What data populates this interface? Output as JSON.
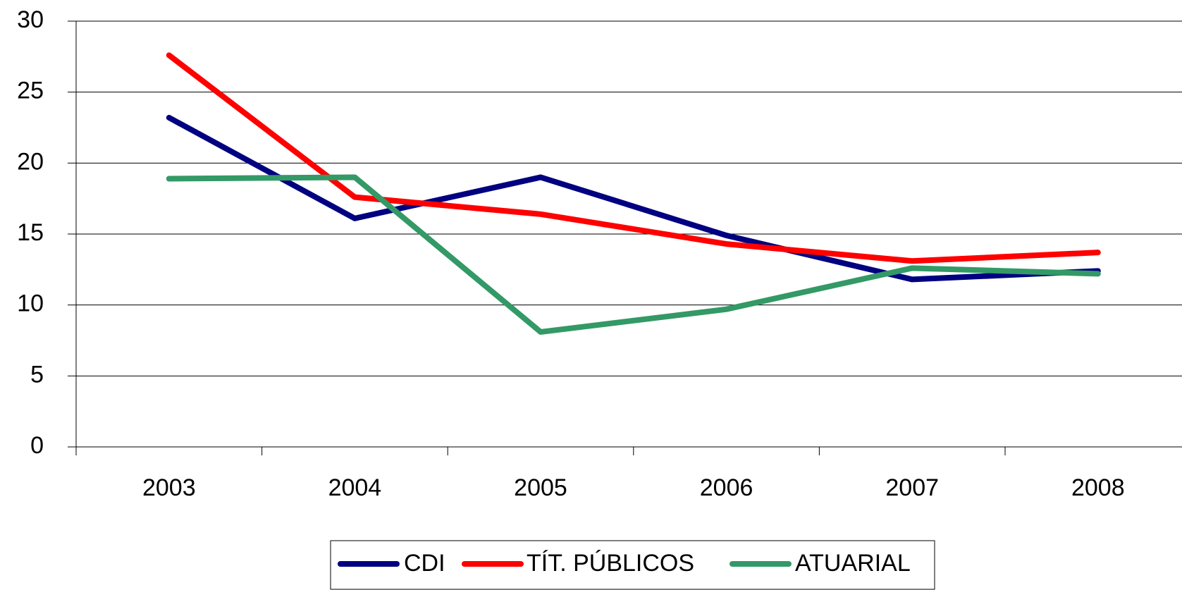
{
  "chart_data": {
    "type": "line",
    "categories": [
      "2003",
      "2004",
      "2005",
      "2006",
      "2007",
      "2008"
    ],
    "series": [
      {
        "name": "CDI",
        "color": "#000080",
        "values": [
          23.2,
          16.1,
          19.0,
          14.9,
          11.8,
          12.4
        ]
      },
      {
        "name": "TÍT. PÚBLICOS",
        "color": "#ff0000",
        "values": [
          27.6,
          17.6,
          16.4,
          14.3,
          13.1,
          13.7
        ]
      },
      {
        "name": "ATUARIAL",
        "color": "#339966",
        "values": [
          18.9,
          19.0,
          8.1,
          9.7,
          12.6,
          12.2
        ]
      }
    ],
    "ylim": [
      0,
      30
    ],
    "yticks": [
      0,
      5,
      10,
      15,
      20,
      25,
      30
    ],
    "grid": true,
    "legend": "bottom"
  }
}
